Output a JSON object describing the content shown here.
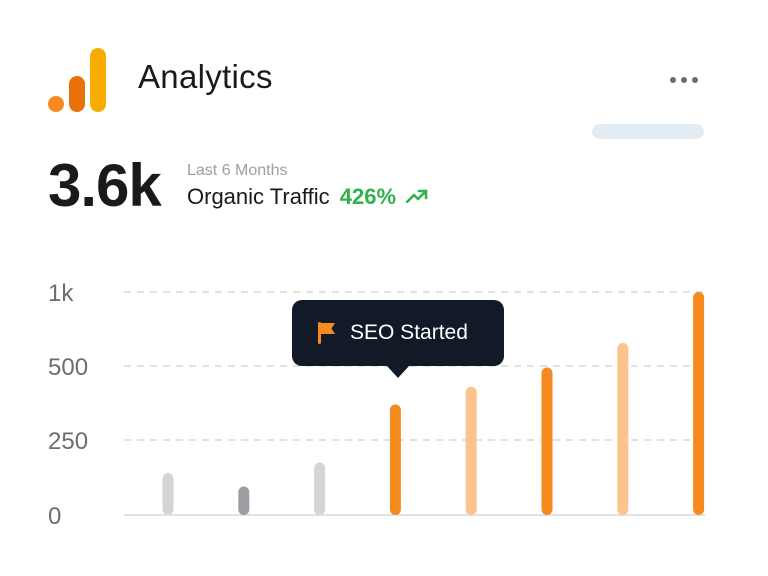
{
  "header": {
    "title": "Analytics",
    "logo_icon": "bar-chart-logo-icon",
    "more_icon": "more-horizontal-icon"
  },
  "summary": {
    "value": "3.6k",
    "period": "Last 6 Months",
    "metric_label": "Organic Traffic",
    "change": "426%",
    "trend_icon": "trending-up-icon"
  },
  "tooltip": {
    "text": "SEO Started",
    "icon": "flag-icon"
  },
  "colors": {
    "orange": "#f58a1f",
    "light_orange": "#fdc38c",
    "gray": "#d5d5d5",
    "dark_gray": "#9b9da1",
    "green": "#2eb24a",
    "tooltip_bg": "#121a28"
  },
  "chart_data": {
    "type": "bar",
    "y_ticks": [
      "0",
      "250",
      "500",
      "1k"
    ],
    "y_tick_values": [
      0,
      250,
      500,
      1000
    ],
    "grid": true,
    "values": [
      140,
      95,
      175,
      370,
      430,
      495,
      655,
      1000
    ],
    "bar_colors": [
      "#d5d5d5",
      "#9b9da1",
      "#d5d5d5",
      "#f58a1f",
      "#fdc38c",
      "#f58a1f",
      "#fdc38c",
      "#f58a1f"
    ],
    "annotation": {
      "bar_index": 3,
      "text": "SEO Started"
    }
  }
}
